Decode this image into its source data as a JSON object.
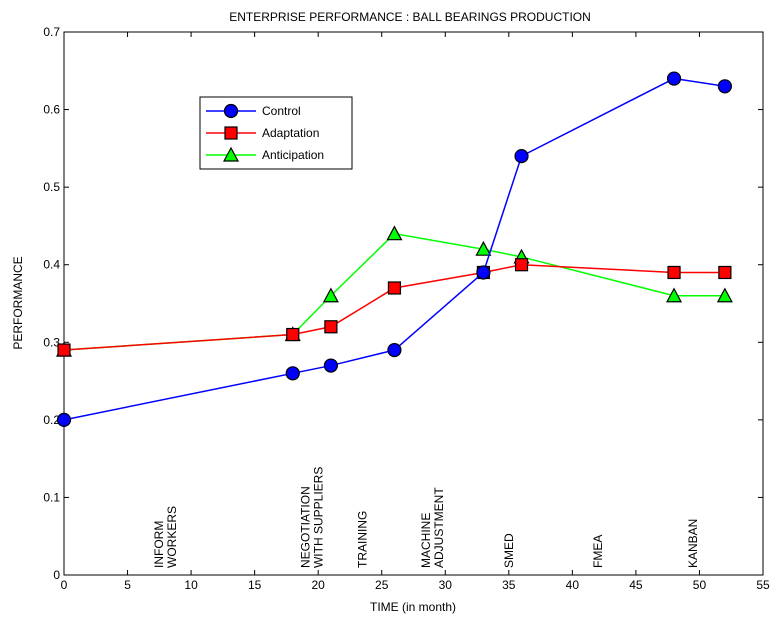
{
  "chart_data": {
    "type": "line",
    "title": "ENTERPRISE PERFORMANCE : BALL BEARINGS PRODUCTION",
    "xlabel": "TIME (in month)",
    "ylabel": "PERFORMANCE",
    "xlim": [
      0,
      55
    ],
    "ylim": [
      0,
      0.7
    ],
    "xticks": [
      0,
      5,
      10,
      15,
      20,
      25,
      30,
      35,
      40,
      45,
      50,
      55
    ],
    "yticks": [
      0,
      0.1,
      0.2,
      0.3,
      0.4,
      0.5,
      0.6,
      0.7
    ],
    "xtick_labels": [
      "0",
      "5",
      "10",
      "15",
      "20",
      "25",
      "30",
      "35",
      "40",
      "45",
      "50",
      "55"
    ],
    "ytick_labels": [
      "0",
      "0.1",
      "0.2",
      "0.3",
      "0.4",
      "0.5",
      "0.6",
      "0.7"
    ],
    "grid": false,
    "legend_position": "top-left",
    "series": [
      {
        "name": "Control",
        "color": "#0000ff",
        "marker": "circle",
        "x": [
          0,
          18,
          21,
          26,
          33,
          36,
          48,
          52
        ],
        "y": [
          0.2,
          0.26,
          0.27,
          0.29,
          0.39,
          0.54,
          0.64,
          0.63
        ]
      },
      {
        "name": "Adaptation",
        "color": "#ff0000",
        "marker": "square",
        "x": [
          0,
          18,
          21,
          26,
          33,
          36,
          48,
          52
        ],
        "y": [
          0.29,
          0.31,
          0.32,
          0.37,
          0.39,
          0.4,
          0.39,
          0.39
        ]
      },
      {
        "name": "Anticipation",
        "color": "#00ff00",
        "marker": "triangle",
        "x": [
          0,
          18,
          21,
          26,
          33,
          36,
          48,
          52
        ],
        "y": [
          0.29,
          0.31,
          0.36,
          0.44,
          0.42,
          0.41,
          0.36,
          0.36
        ]
      }
    ],
    "annotations": [
      {
        "x": 8,
        "lines": [
          "INFORM",
          "WORKERS"
        ]
      },
      {
        "x": 19.5,
        "lines": [
          "NEGOTIATION",
          "WITH SUPPLIERS"
        ]
      },
      {
        "x": 23.5,
        "lines": [
          "TRAINING"
        ]
      },
      {
        "x": 29,
        "lines": [
          "MACHINE",
          "ADJUSTMENT"
        ]
      },
      {
        "x": 35,
        "lines": [
          "SMED"
        ]
      },
      {
        "x": 42,
        "lines": [
          "FMEA"
        ]
      },
      {
        "x": 49.5,
        "lines": [
          "KANBAN"
        ]
      }
    ]
  }
}
